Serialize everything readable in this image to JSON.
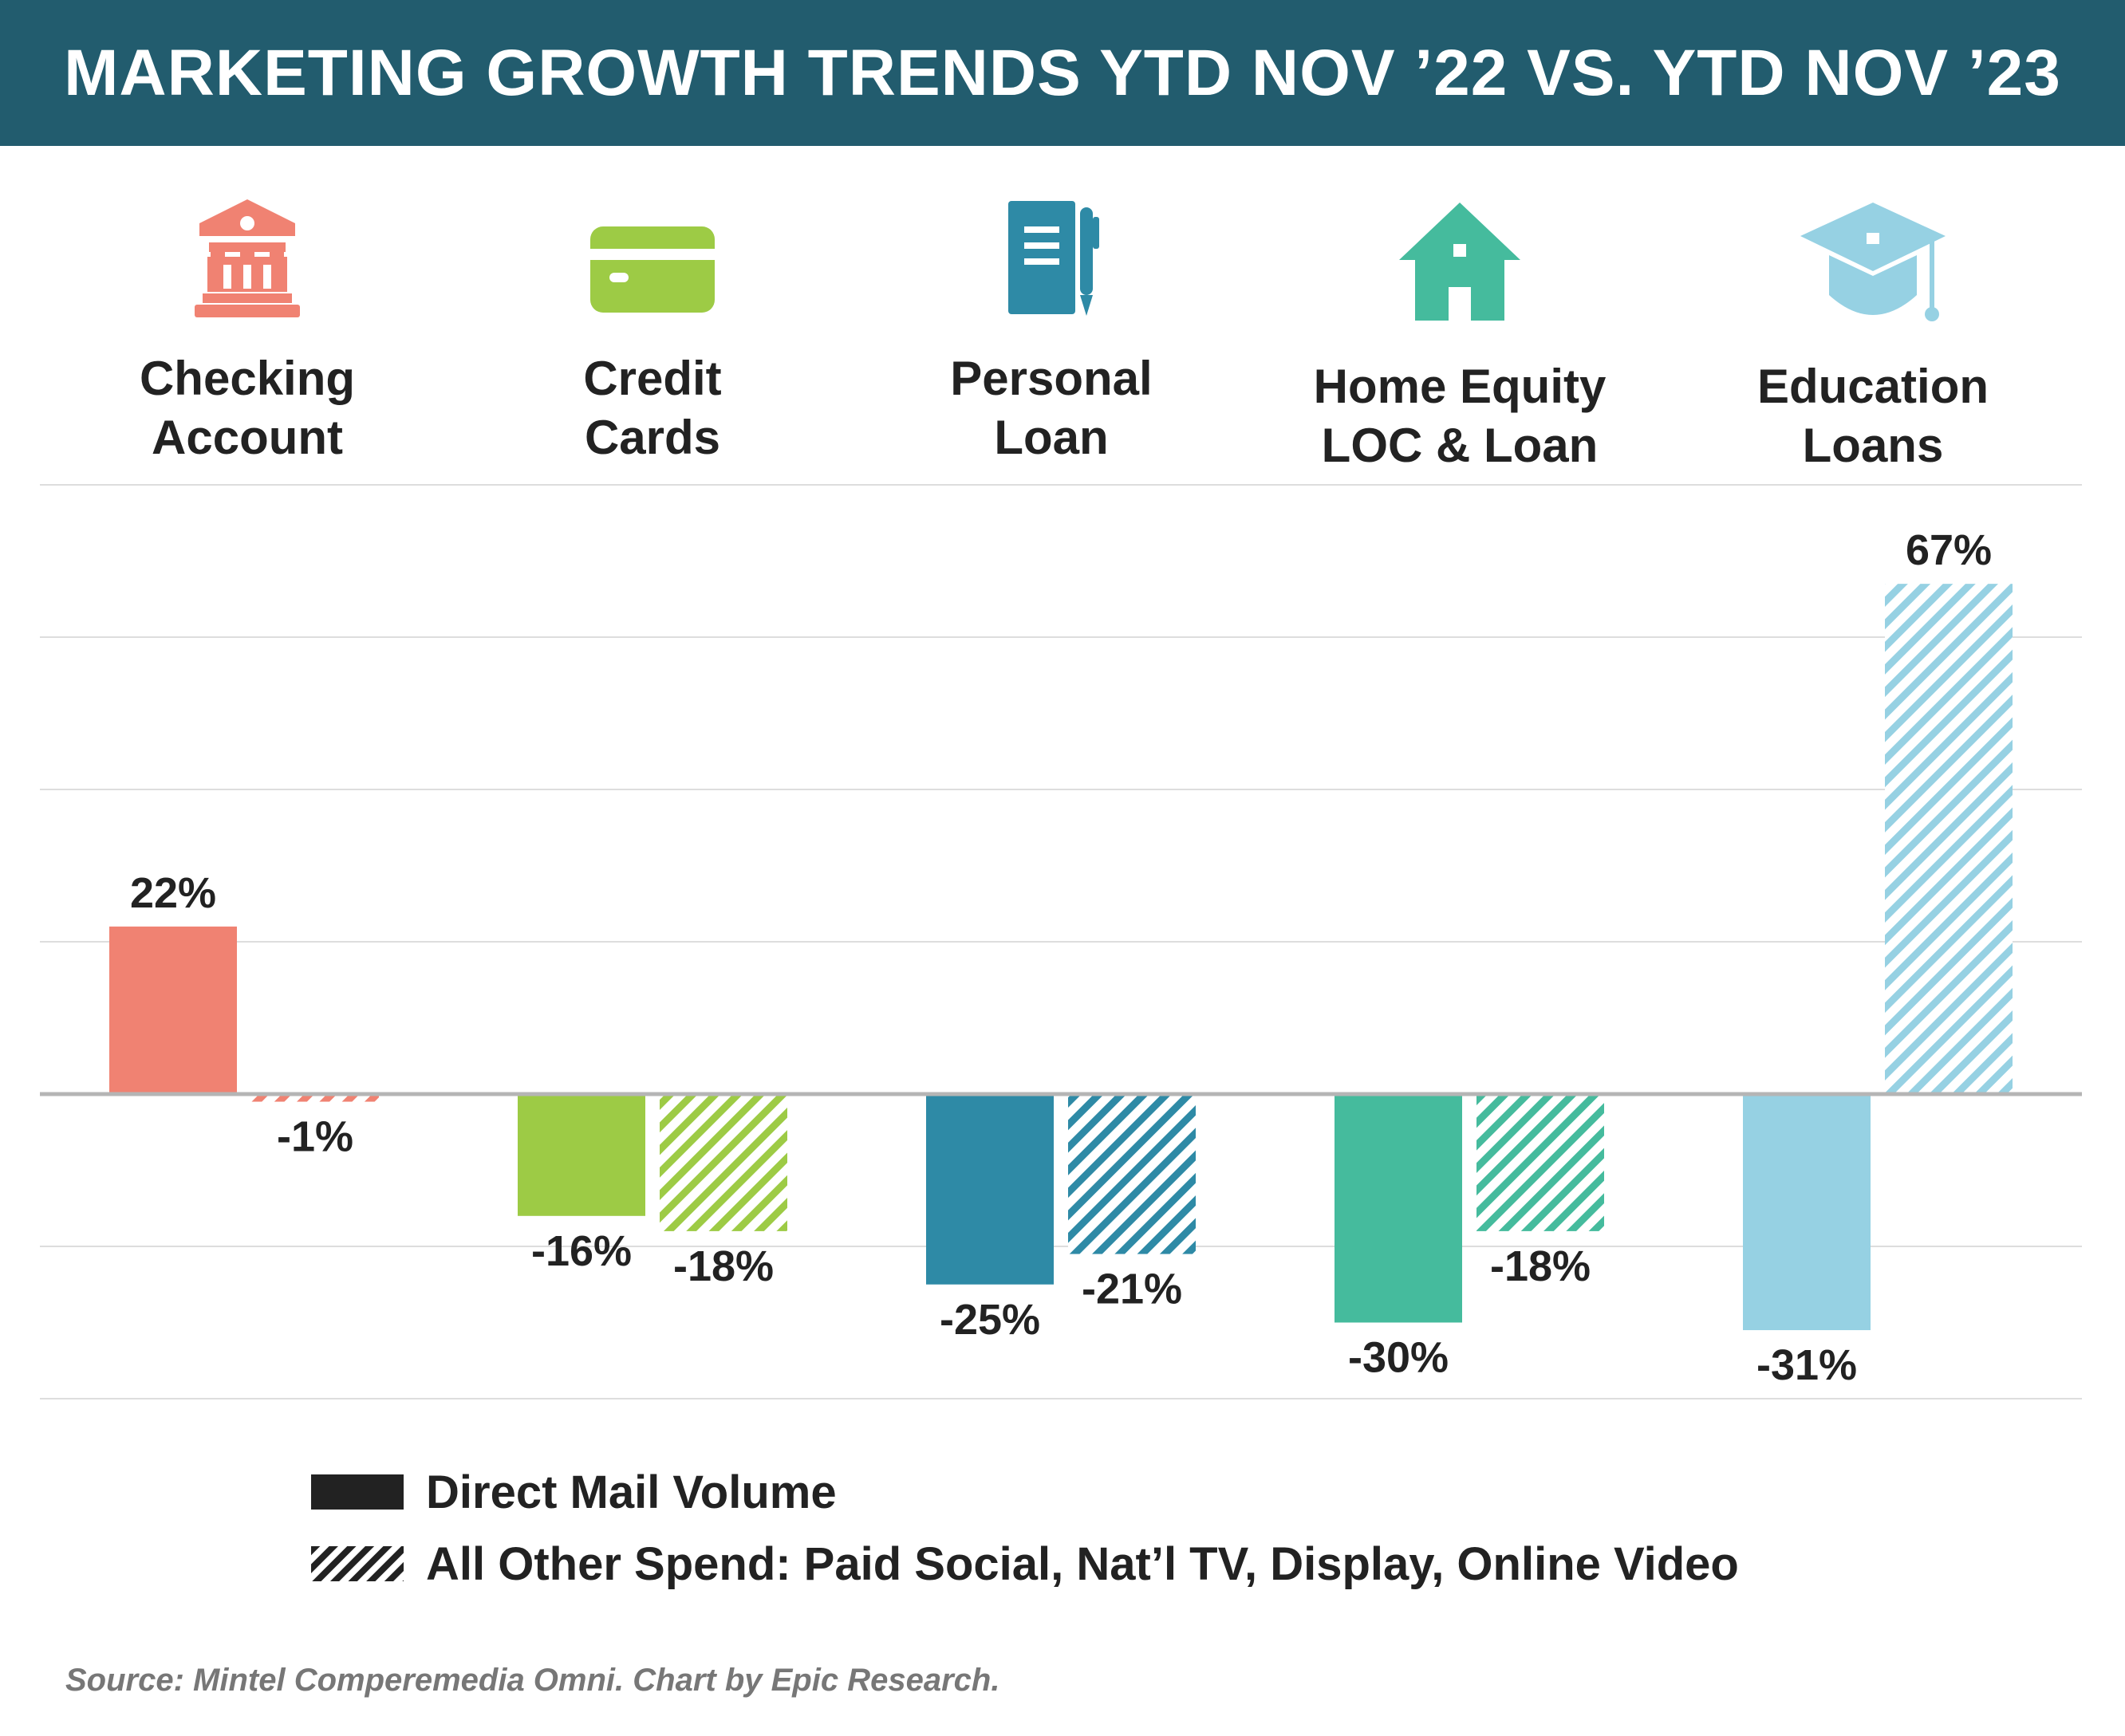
{
  "title": "MARKETING GROWTH TRENDS YTD NOV ’22 VS. YTD NOV ’23",
  "categories": [
    {
      "label": "Checking\nAccount",
      "icon": "bank-icon",
      "color": "#f08272"
    },
    {
      "label": "Credit\nCards",
      "icon": "credit-card-icon",
      "color": "#9dcb45"
    },
    {
      "label": "Personal\nLoan",
      "icon": "notebook-pen-icon",
      "color": "#2e8aa6"
    },
    {
      "label": "Home Equity\nLOC & Loan",
      "icon": "house-icon",
      "color": "#45bb9d"
    },
    {
      "label": "Education\nLoans",
      "icon": "graduation-cap-icon",
      "color": "#96d1e3"
    }
  ],
  "legend": {
    "direct_mail": "Direct Mail Volume",
    "other_spend": "All Other Spend: Paid Social, Nat’l TV, Display, Online Video"
  },
  "source": "Source: Mintel Comperemedia Omni. Chart by Epic Research.",
  "chart_data": {
    "type": "bar",
    "categories": [
      "Checking Account",
      "Credit Cards",
      "Personal Loan",
      "Home Equity LOC & Loan",
      "Education Loans"
    ],
    "series": [
      {
        "name": "Direct Mail Volume",
        "style": "solid",
        "values": [
          22,
          -16,
          -25,
          -30,
          -31
        ],
        "labels": [
          "22%",
          "-16%",
          "-25%",
          "-30%",
          "-31%"
        ]
      },
      {
        "name": "All Other Spend: Paid Social, Nat’l TV, Display, Online Video",
        "style": "hatched",
        "values": [
          -1,
          -18,
          -21,
          -18,
          67
        ],
        "labels": [
          "-1%",
          "-18%",
          "-21%",
          "-18%",
          "67%"
        ]
      }
    ],
    "ylim": [
      -40,
      80
    ],
    "grid": true,
    "legend_position": "bottom"
  }
}
